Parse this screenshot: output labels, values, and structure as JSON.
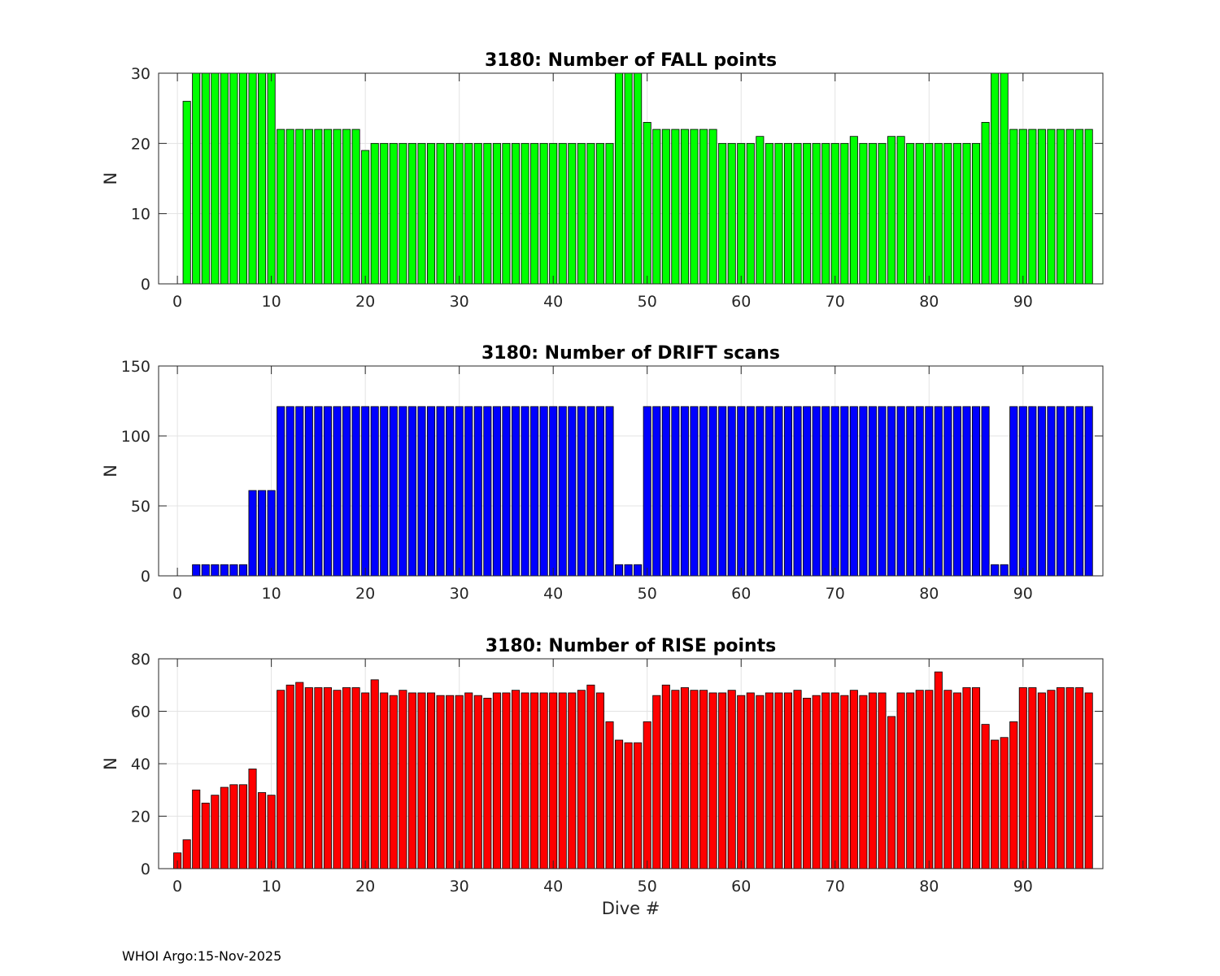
{
  "footer": "WHOI Argo:15-Nov-2025",
  "chart_data": [
    {
      "type": "bar",
      "title": "3180: Number of FALL points",
      "xlabel": "",
      "ylabel": "N",
      "color": "#00ff00",
      "xlim": [
        -2,
        98.5
      ],
      "ylim": [
        0,
        30
      ],
      "xticks": [
        "0",
        "10",
        "20",
        "30",
        "40",
        "50",
        "60",
        "70",
        "80",
        "90"
      ],
      "yticks": [
        "0",
        "10",
        "20",
        "30"
      ],
      "x": [
        0,
        1,
        2,
        3,
        4,
        5,
        6,
        7,
        8,
        9,
        10,
        11,
        12,
        13,
        14,
        15,
        16,
        17,
        18,
        19,
        20,
        21,
        22,
        23,
        24,
        25,
        26,
        27,
        28,
        29,
        30,
        31,
        32,
        33,
        34,
        35,
        36,
        37,
        38,
        39,
        40,
        41,
        42,
        43,
        44,
        45,
        46,
        47,
        48,
        49,
        50,
        51,
        52,
        53,
        54,
        55,
        56,
        57,
        58,
        59,
        60,
        61,
        62,
        63,
        64,
        65,
        66,
        67,
        68,
        69,
        70,
        71,
        72,
        73,
        74,
        75,
        76,
        77,
        78,
        79,
        80,
        81,
        82,
        83,
        84,
        85,
        86,
        87,
        88,
        89,
        90,
        91,
        92,
        93,
        94,
        95,
        96,
        97
      ],
      "values": [
        0,
        26,
        30,
        30,
        30,
        30,
        30,
        30,
        30,
        30,
        30,
        22,
        22,
        22,
        22,
        22,
        22,
        22,
        22,
        22,
        19,
        20,
        20,
        20,
        20,
        20,
        20,
        20,
        20,
        20,
        20,
        20,
        20,
        20,
        20,
        20,
        20,
        20,
        20,
        20,
        20,
        20,
        20,
        20,
        20,
        20,
        20,
        30,
        30,
        30,
        23,
        22,
        22,
        22,
        22,
        22,
        22,
        22,
        20,
        20,
        20,
        20,
        21,
        20,
        20,
        20,
        20,
        20,
        20,
        20,
        20,
        20,
        21,
        20,
        20,
        20,
        21,
        21,
        20,
        20,
        20,
        20,
        20,
        20,
        20,
        20,
        23,
        30,
        30,
        22,
        22,
        22,
        22,
        22,
        22,
        22,
        22,
        22
      ]
    },
    {
      "type": "bar",
      "title": "3180: Number of DRIFT scans",
      "xlabel": "",
      "ylabel": "N",
      "color": "#0000ff",
      "xlim": [
        -2,
        98.5
      ],
      "ylim": [
        0,
        150
      ],
      "xticks": [
        "0",
        "10",
        "20",
        "30",
        "40",
        "50",
        "60",
        "70",
        "80",
        "90"
      ],
      "yticks": [
        "0",
        "50",
        "100",
        "150"
      ],
      "x": [
        0,
        1,
        2,
        3,
        4,
        5,
        6,
        7,
        8,
        9,
        10,
        11,
        12,
        13,
        14,
        15,
        16,
        17,
        18,
        19,
        20,
        21,
        22,
        23,
        24,
        25,
        26,
        27,
        28,
        29,
        30,
        31,
        32,
        33,
        34,
        35,
        36,
        37,
        38,
        39,
        40,
        41,
        42,
        43,
        44,
        45,
        46,
        47,
        48,
        49,
        50,
        51,
        52,
        53,
        54,
        55,
        56,
        57,
        58,
        59,
        60,
        61,
        62,
        63,
        64,
        65,
        66,
        67,
        68,
        69,
        70,
        71,
        72,
        73,
        74,
        75,
        76,
        77,
        78,
        79,
        80,
        81,
        82,
        83,
        84,
        85,
        86,
        87,
        88,
        89,
        90,
        91,
        92,
        93,
        94,
        95,
        96,
        97
      ],
      "values": [
        0,
        0,
        8,
        8,
        8,
        8,
        8,
        8,
        61,
        61,
        61,
        121,
        121,
        121,
        121,
        121,
        121,
        121,
        121,
        121,
        121,
        121,
        121,
        121,
        121,
        121,
        121,
        121,
        121,
        121,
        121,
        121,
        121,
        121,
        121,
        121,
        121,
        121,
        121,
        121,
        121,
        121,
        121,
        121,
        121,
        121,
        121,
        8,
        8,
        8,
        121,
        121,
        121,
        121,
        121,
        121,
        121,
        121,
        121,
        121,
        121,
        121,
        121,
        121,
        121,
        121,
        121,
        121,
        121,
        121,
        121,
        121,
        121,
        121,
        121,
        121,
        121,
        121,
        121,
        121,
        121,
        121,
        121,
        121,
        121,
        121,
        121,
        8,
        8,
        121,
        121,
        121,
        121,
        121,
        121,
        121,
        121,
        121
      ]
    },
    {
      "type": "bar",
      "title": "3180: Number of RISE points",
      "xlabel": "Dive #",
      "ylabel": "N",
      "color": "#ff0000",
      "xlim": [
        -2,
        98.5
      ],
      "ylim": [
        0,
        80
      ],
      "xticks": [
        "0",
        "10",
        "20",
        "30",
        "40",
        "50",
        "60",
        "70",
        "80",
        "90"
      ],
      "yticks": [
        "0",
        "20",
        "40",
        "60",
        "80"
      ],
      "x": [
        0,
        1,
        2,
        3,
        4,
        5,
        6,
        7,
        8,
        9,
        10,
        11,
        12,
        13,
        14,
        15,
        16,
        17,
        18,
        19,
        20,
        21,
        22,
        23,
        24,
        25,
        26,
        27,
        28,
        29,
        30,
        31,
        32,
        33,
        34,
        35,
        36,
        37,
        38,
        39,
        40,
        41,
        42,
        43,
        44,
        45,
        46,
        47,
        48,
        49,
        50,
        51,
        52,
        53,
        54,
        55,
        56,
        57,
        58,
        59,
        60,
        61,
        62,
        63,
        64,
        65,
        66,
        67,
        68,
        69,
        70,
        71,
        72,
        73,
        74,
        75,
        76,
        77,
        78,
        79,
        80,
        81,
        82,
        83,
        84,
        85,
        86,
        87,
        88,
        89,
        90,
        91,
        92,
        93,
        94,
        95,
        96,
        97
      ],
      "values": [
        6,
        11,
        30,
        25,
        28,
        31,
        32,
        32,
        38,
        29,
        28,
        68,
        70,
        71,
        69,
        69,
        69,
        68,
        69,
        69,
        67,
        72,
        67,
        66,
        68,
        67,
        67,
        67,
        66,
        66,
        66,
        67,
        66,
        65,
        67,
        67,
        68,
        67,
        67,
        67,
        67,
        67,
        67,
        68,
        70,
        67,
        56,
        49,
        48,
        48,
        56,
        66,
        70,
        68,
        69,
        68,
        68,
        67,
        67,
        68,
        66,
        67,
        66,
        67,
        67,
        67,
        68,
        65,
        66,
        67,
        67,
        66,
        68,
        66,
        67,
        67,
        58,
        67,
        67,
        68,
        68,
        75,
        68,
        67,
        69,
        69,
        55,
        49,
        50,
        56,
        69,
        69,
        67,
        68,
        69,
        69,
        69,
        67
      ]
    }
  ]
}
